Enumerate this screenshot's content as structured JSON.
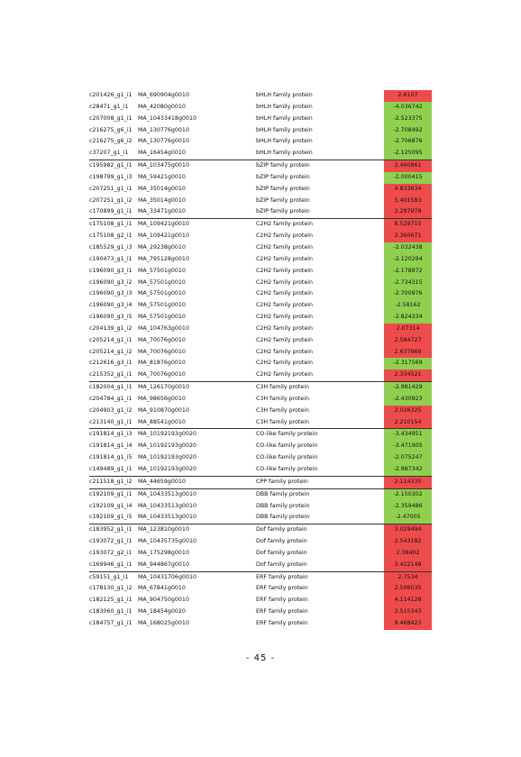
{
  "colors": {
    "up": "#ef4b4b",
    "down": "#8fd14f"
  },
  "groups": [
    {
      "rows": [
        [
          "c201426_g1_i1",
          "MA_690904g0010",
          "bHLH  family  protein",
          "2.6107"
        ],
        [
          "c28471_g1_i1",
          "MA_42080g0010",
          "bHLH  family  protein",
          "-4.036742"
        ],
        [
          "c207008_g1_i1",
          "MA_10433418g0010",
          "bHLH  family  protein",
          "-2.523375"
        ],
        [
          "c216275_g6_i1",
          "MA_130776g0010",
          "bHLH  family  protein",
          "-2.708492"
        ],
        [
          "c216275_g6_i2",
          "MA_130776g0010",
          "bHLH  family  protein",
          "-2.706876"
        ],
        [
          "c37207_g1_i1",
          "MA_16454g0010",
          "bHLH  family  protein",
          "-2.125095"
        ]
      ]
    },
    {
      "rows": [
        [
          "c195982_g1_i1",
          "MA_103475g0010",
          "bZIP  family  protein",
          "2.460861"
        ],
        [
          "c198799_g1_i3",
          "MA_59421g0010",
          "bZIP  family  protein",
          "-2.000415"
        ],
        [
          "c207251_g1_i1",
          "MA_35014g0010",
          "bZIP  family  protein",
          "4.833634"
        ],
        [
          "c207251_g1_i2",
          "MA_35014g0010",
          "bZIP  family  protein",
          "5.401583"
        ],
        [
          "c170899_g1_i1",
          "MA_33471g0010",
          "bZIP  family  protein",
          "2.297978"
        ]
      ]
    },
    {
      "rows": [
        [
          "c175108_g1_i1",
          "MA_109421g0010",
          "C2H2  family  protein",
          "8.529715"
        ],
        [
          "c175108_g2_i1",
          "MA_109421g0010",
          "C2H2  family  protein",
          "2.360671"
        ],
        [
          "c185529_g1_i3",
          "MA_29238g0010",
          "C2H2  family  protein",
          "-2.032438"
        ],
        [
          "c190473_g1_i1",
          "MA_795128g0010",
          "C2H2  family  protein",
          "-2.120294"
        ],
        [
          "c196090_g3_i1",
          "MA_57501g0010",
          "C2H2  family  protein",
          "-2.178972"
        ],
        [
          "c196090_g3_i2",
          "MA_57501g0010",
          "C2H2  family  protein",
          "-2.734315"
        ],
        [
          "c196090_g3_i3",
          "MA_57501g0010",
          "C2H2  family  protein",
          "-2.700976"
        ],
        [
          "c196090_g3_i4",
          "MA_57501g0010",
          "C2H2  family  protein",
          "-2.58162"
        ],
        [
          "c196090_g3_i5",
          "MA_57501g0010",
          "C2H2  family  protein",
          "-2.824334"
        ],
        [
          "c204139_g1_i2",
          "MA_104763g0010",
          "C2H2  family  protein",
          "2.07314"
        ],
        [
          "c205214_g1_i1",
          "MA_70076g0010",
          "C2H2  family  protein",
          "2.584727"
        ],
        [
          "c205214_g1_i2",
          "MA_70076g0010",
          "C2H2  family  protein",
          "2.637969"
        ],
        [
          "c212616_g3_i1",
          "MA_81876g0010",
          "C2H2  family  protein",
          "-2.317569"
        ],
        [
          "c215352_g1_i1",
          "MA_70076g0010",
          "C2H2  family  protein",
          "2.334521"
        ]
      ]
    },
    {
      "rows": [
        [
          "c182004_g1_i1",
          "MA_126170g0010",
          "C3H  family  protein",
          "-2.981429"
        ],
        [
          "c204784_g1_i1",
          "MA_98656g0010",
          "C3H  family  protein",
          "-2.430923"
        ],
        [
          "c204903_g1_i2",
          "MA_910870g0010",
          "C3H  family  protein",
          "2.026325"
        ],
        [
          "c213140_g1_i1",
          "MA_88541g0010",
          "C3H  family  protein",
          "2.210154"
        ]
      ]
    },
    {
      "rows": [
        [
          "c191814_g1_i3",
          "MA_10192193g0020",
          "CO-like  family  protein",
          "-3.434951"
        ],
        [
          "c191814_g1_i4",
          "MA_10192193g0020",
          "CO-like  family  protein",
          "-3.471905"
        ],
        [
          "c191814_g1_i5",
          "MA_10192193g0020",
          "CO-like  family  protein",
          "-2.075247"
        ],
        [
          "c149489_g1_i1",
          "MA_10192193g0020",
          "CO-like  family  protein",
          "-2.987342"
        ]
      ]
    },
    {
      "rows": [
        [
          "c211518_g1_i2",
          "MA_44659g0010",
          "CPP  family  protein",
          "2.114335"
        ]
      ]
    },
    {
      "rows": [
        [
          "c192109_g1_i1",
          "MA_10433513g0010",
          "DBB  family  protein",
          "-2.150302"
        ],
        [
          "c192109_g1_i4",
          "MA_10433513g0010",
          "DBB  family  protein",
          "-2.359486"
        ],
        [
          "c192109_g1_i5",
          "MA_10433513g0010",
          "DBB  family  protein",
          "-2.47005"
        ]
      ]
    },
    {
      "rows": [
        [
          "c183952_g1_i1",
          "MA_123810g0010",
          "Dof  family  protein",
          "3.029494"
        ],
        [
          "c193072_g1_i1",
          "MA_10435735g0010",
          "Dof  family  protein",
          "2.543182"
        ],
        [
          "c193072_g2_i1",
          "MA_175298g0010",
          "Dof  family  protein",
          "2.38402"
        ],
        [
          "c169946_g1_i1",
          "MA_944867g0010",
          "Dof  family  protein",
          "3.422148"
        ]
      ]
    },
    {
      "rows": [
        [
          "c59151_g1_i1",
          "MA_10431706g0010",
          "ERF  family  protein",
          "2.7534"
        ],
        [
          "c178130_g1_i2",
          "MA_67841g0010",
          "ERF  family  protein",
          "2.506035"
        ],
        [
          "c182125_g1_i1",
          "MA_904750g0010",
          "ERF  family  protein",
          "4.114126"
        ],
        [
          "c183060_g1_i1",
          "MA_18454g0020",
          "ERF  family  protein",
          "3.515343"
        ],
        [
          "c184757_g1_i1",
          "MA_168025g0010",
          "ERF  family  protein",
          "9.468423"
        ]
      ]
    }
  ],
  "page_number": "- 45 -"
}
